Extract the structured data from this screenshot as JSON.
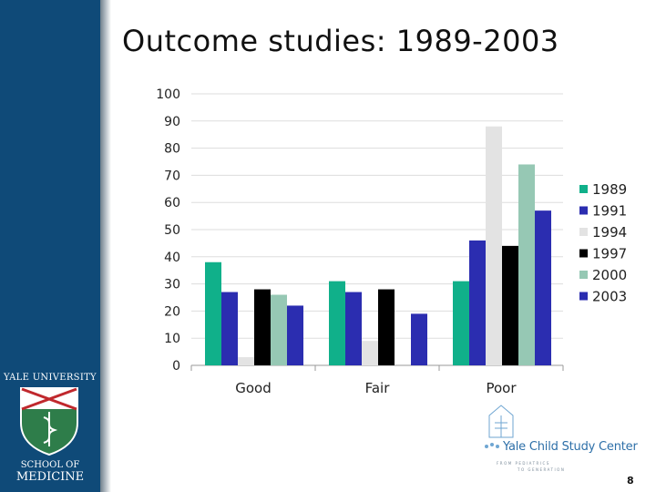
{
  "slide": {
    "title": "Outcome studies: 1989-2003",
    "page_number": "8"
  },
  "logos": {
    "yale_university": "YALE UNIVERSITY",
    "school_of": "SCHOOL OF",
    "medicine": "MEDICINE",
    "child_study_center": "Yale Child Study Center",
    "tagline_1": "FROM PEDIATRICS",
    "tagline_2": "TO GENERATION"
  },
  "colors": {
    "sidebar": "#0f4a78",
    "series": [
      "#10b08a",
      "#2b2db0",
      "#e3e3e3",
      "#000000",
      "#96c8b4",
      "#2b2db0"
    ]
  },
  "chart_data": {
    "type": "bar",
    "categories": [
      "Good",
      "Fair",
      "Poor"
    ],
    "series": [
      {
        "name": "1989",
        "values": [
          38,
          31,
          31
        ]
      },
      {
        "name": "1991",
        "values": [
          27,
          27,
          46
        ]
      },
      {
        "name": "1994",
        "values": [
          3,
          9,
          88
        ]
      },
      {
        "name": "1997",
        "values": [
          28,
          28,
          44
        ]
      },
      {
        "name": "2000",
        "values": [
          26,
          null,
          74
        ]
      },
      {
        "name": "2003",
        "values": [
          22,
          19,
          57
        ]
      }
    ],
    "ylim": [
      0,
      100
    ],
    "yticks": [
      0,
      10,
      20,
      30,
      40,
      50,
      60,
      70,
      80,
      90,
      100
    ],
    "grid": true,
    "legend": "right"
  }
}
